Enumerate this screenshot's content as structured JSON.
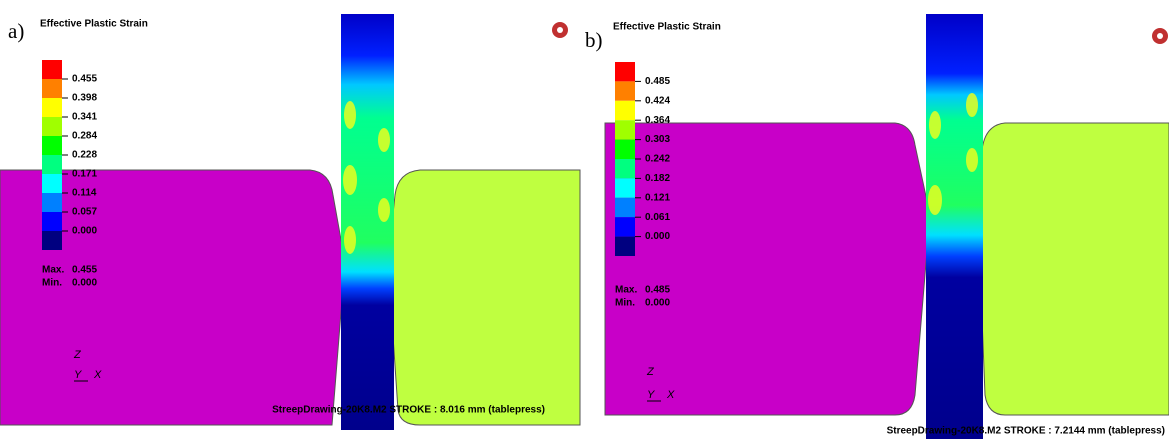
{
  "panels": [
    {
      "label": "a)",
      "legend_title": "Effective Plastic Strain",
      "legend_values": [
        "0.455",
        "0.398",
        "0.341",
        "0.284",
        "0.228",
        "0.171",
        "0.114",
        "0.057",
        "0.000"
      ],
      "max_label": "Max.",
      "max_value": "0.455",
      "min_label": "Min.",
      "min_value": "0.000",
      "axis_z": "Z",
      "axis_y": "Y",
      "axis_x": "X",
      "footer": "StreepDrawing-20K8.M2 STROKE : 8.016 mm (tablepress)"
    },
    {
      "label": "b)",
      "legend_title": "Effective Plastic Strain",
      "legend_values": [
        "0.485",
        "0.424",
        "0.364",
        "0.303",
        "0.242",
        "0.182",
        "0.121",
        "0.061",
        "0.000"
      ],
      "max_label": "Max.",
      "max_value": "0.485",
      "min_label": "Min.",
      "min_value": "0.000",
      "axis_z": "Z",
      "axis_y": "Y",
      "axis_x": "X",
      "footer": "StreepDrawing-20K8.M2 STROKE : 7.2144 mm (tablepress)"
    }
  ]
}
